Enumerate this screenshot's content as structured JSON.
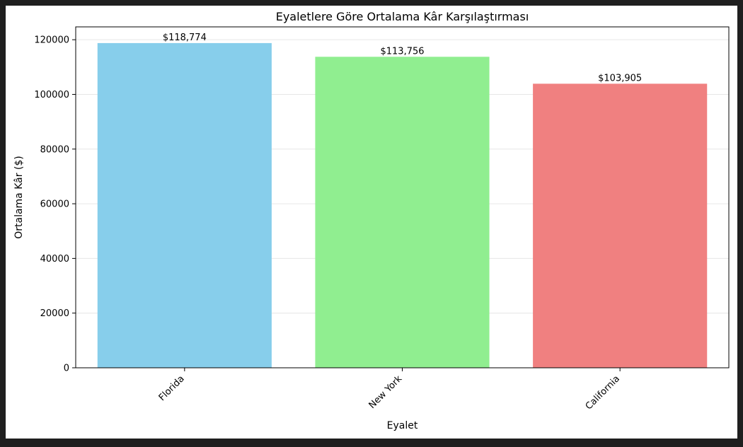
{
  "chart_data": {
    "type": "bar",
    "title": "Eyaletlere Göre Ortalama Kâr Karşılaştırması",
    "xlabel": "Eyalet",
    "ylabel": "Ortalama Kâr ($)",
    "categories": [
      "Florida",
      "New York",
      "California"
    ],
    "values": [
      118774,
      113756,
      103905
    ],
    "value_labels": [
      "$118,774",
      "$113,756",
      "$103,905"
    ],
    "colors": [
      "#87ceeb",
      "#90ee90",
      "#f08080"
    ],
    "ylim": [
      0,
      124700
    ],
    "yticks": [
      0,
      20000,
      40000,
      60000,
      80000,
      100000,
      120000
    ],
    "ytick_labels": [
      "0",
      "20000",
      "40000",
      "60000",
      "80000",
      "100000",
      "120000"
    ],
    "grid": "y",
    "xtick_rotation": 45
  }
}
